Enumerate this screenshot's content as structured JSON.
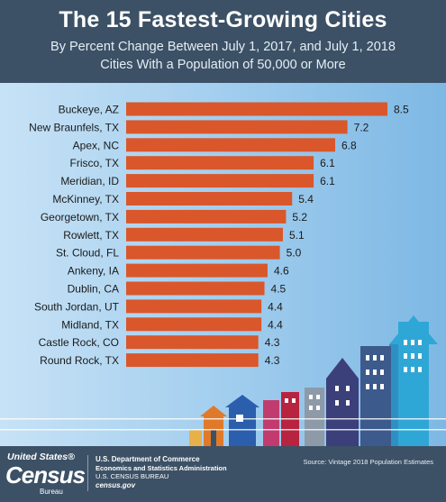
{
  "header": {
    "title": "The 15 Fastest-Growing Cities",
    "subtitle_line1": "By Percent Change Between July 1, 2017, and July 1, 2018",
    "subtitle_line2": "Cities With a Population of 50,000 or More"
  },
  "chart_data": {
    "type": "bar",
    "orientation": "horizontal",
    "title": "The 15 Fastest-Growing Cities",
    "subtitle": "By Percent Change Between July 1, 2017, and July 1, 2018",
    "categories": [
      "Buckeye, AZ",
      "New Braunfels, TX",
      "Apex, NC",
      "Frisco, TX",
      "Meridian, ID",
      "McKinney, TX",
      "Georgetown, TX",
      "Rowlett, TX",
      "St. Cloud, FL",
      "Ankeny, IA",
      "Dublin, CA",
      "South Jordan, UT",
      "Midland, TX",
      "Castle Rock, CO",
      "Round Rock, TX"
    ],
    "values": [
      8.5,
      7.2,
      6.8,
      6.1,
      6.1,
      5.4,
      5.2,
      5.1,
      5.0,
      4.6,
      4.5,
      4.4,
      4.4,
      4.3,
      4.3
    ],
    "value_labels": [
      "8.5",
      "7.2",
      "6.8",
      "6.1",
      "6.1",
      "5.4",
      "5.2",
      "5.1",
      "5.0",
      "4.6",
      "4.5",
      "4.4",
      "4.4",
      "4.3",
      "4.3"
    ],
    "xlim": [
      0,
      8.5
    ],
    "bar_color": "#d9572b",
    "grid": false
  },
  "footer": {
    "logo_top": "United States®",
    "logo_main": "Census",
    "logo_bottom": "Bureau",
    "agency_line1": "U.S. Department of Commerce",
    "agency_line2": "Economics and Statistics Administration",
    "agency_line3": "U.S. CENSUS BUREAU",
    "agency_line4": "census.gov",
    "source": "Source: Vintage 2018 Population Estimates"
  },
  "colors": {
    "header_bg": "#3c5166",
    "bar": "#d9572b",
    "label_text": "#1a1a1a"
  }
}
